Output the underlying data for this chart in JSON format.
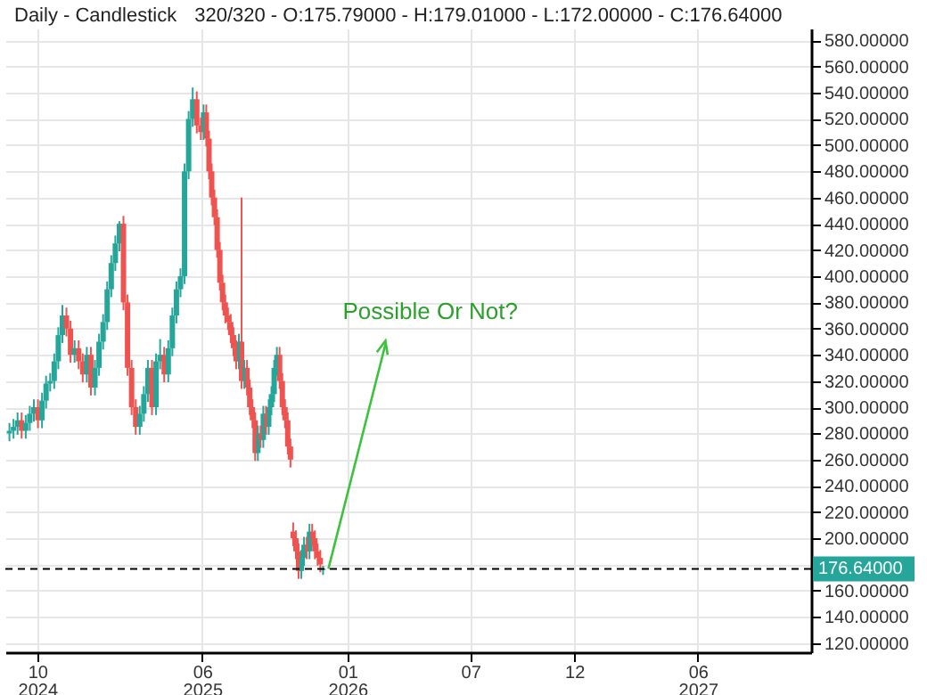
{
  "chart_data": {
    "type": "candlestick",
    "title": "Daily - Candlestick",
    "subtitle": "320/320 - O:175.79000 - H:179.01000 - L:172.00000 - C:176.64000",
    "x": [
      "2024-08-21",
      "2024-08-27",
      "2024-09-02",
      "2024-09-08",
      "2024-09-14",
      "2024-09-20",
      "2024-09-26",
      "2024-10-02",
      "2024-10-08",
      "2024-10-14",
      "2024-10-20",
      "2024-10-26",
      "2024-11-01",
      "2024-11-07",
      "2024-11-13",
      "2024-11-19",
      "2024-11-25",
      "2024-12-01",
      "2024-12-07",
      "2024-12-13",
      "2024-12-19",
      "2024-12-25",
      "2024-12-31",
      "2025-01-06",
      "2025-01-12",
      "2025-01-18",
      "2025-01-24",
      "2025-01-30",
      "2025-02-05",
      "2025-02-11",
      "2025-02-17",
      "2025-02-23",
      "2025-03-01",
      "2025-03-07",
      "2025-03-13",
      "2025-03-19",
      "2025-03-25",
      "2025-03-31",
      "2025-04-06",
      "2025-04-12",
      "2025-04-18",
      "2025-04-24",
      "2025-04-30",
      "2025-05-06",
      "2025-05-12",
      "2025-05-18",
      "2025-05-24",
      "2025-05-30",
      "2025-06-03",
      "2025-06-07",
      "2025-06-11",
      "2025-06-15",
      "2025-06-19",
      "2025-06-23",
      "2025-06-27",
      "2025-07-01",
      "2025-07-05",
      "2025-07-09",
      "2025-07-13",
      "2025-07-17",
      "2025-07-21",
      "2025-07-25",
      "2025-07-29",
      "2025-08-02",
      "2025-08-06",
      "2025-08-10",
      "2025-08-14",
      "2025-08-18",
      "2025-08-22",
      "2025-08-26",
      "2025-08-30",
      "2025-09-03",
      "2025-09-07",
      "2025-09-11",
      "2025-09-15",
      "2025-09-19",
      "2025-09-23",
      "2025-09-27",
      "2025-10-01",
      "2025-10-05",
      "2025-10-09",
      "2025-10-13",
      "2025-10-17",
      "2025-10-21",
      "2025-10-25",
      "2025-10-29",
      "2025-11-02",
      "2025-11-06",
      "2025-11-10",
      "2025-11-14",
      "2025-11-18",
      "2025-11-22",
      "2025-11-26"
    ],
    "ohlc": [
      [
        280,
        288,
        274,
        282
      ],
      [
        282,
        291,
        276,
        285
      ],
      [
        285,
        296,
        279,
        290
      ],
      [
        290,
        296,
        276,
        282
      ],
      [
        282,
        294,
        276,
        288
      ],
      [
        288,
        301,
        282,
        295
      ],
      [
        295,
        306,
        289,
        300
      ],
      [
        300,
        306,
        284,
        290
      ],
      [
        290,
        311,
        284,
        305
      ],
      [
        305,
        324,
        299,
        318
      ],
      [
        318,
        326,
        312,
        320
      ],
      [
        320,
        341,
        314,
        335
      ],
      [
        335,
        361,
        329,
        355
      ],
      [
        355,
        378,
        349,
        370
      ],
      [
        370,
        376,
        354,
        360
      ],
      [
        360,
        366,
        334,
        340
      ],
      [
        340,
        351,
        334,
        345
      ],
      [
        345,
        351,
        329,
        335
      ],
      [
        335,
        341,
        319,
        325
      ],
      [
        325,
        346,
        319,
        340
      ],
      [
        340,
        346,
        309,
        315
      ],
      [
        315,
        336,
        309,
        330
      ],
      [
        330,
        356,
        324,
        350
      ],
      [
        350,
        371,
        344,
        365
      ],
      [
        365,
        396,
        359,
        390
      ],
      [
        390,
        416,
        384,
        410
      ],
      [
        410,
        431,
        404,
        425
      ],
      [
        425,
        442,
        419,
        440
      ],
      [
        440,
        446,
        374,
        380
      ],
      [
        380,
        386,
        324,
        330
      ],
      [
        330,
        336,
        294,
        300
      ],
      [
        300,
        306,
        279,
        285
      ],
      [
        285,
        301,
        279,
        295
      ],
      [
        295,
        316,
        289,
        310
      ],
      [
        310,
        336,
        304,
        330
      ],
      [
        330,
        336,
        294,
        300
      ],
      [
        300,
        341,
        294,
        335
      ],
      [
        335,
        352,
        329,
        340
      ],
      [
        340,
        346,
        319,
        325
      ],
      [
        325,
        351,
        319,
        345
      ],
      [
        345,
        376,
        339,
        370
      ],
      [
        370,
        396,
        364,
        390
      ],
      [
        390,
        406,
        384,
        400
      ],
      [
        400,
        486,
        394,
        480
      ],
      [
        480,
        526,
        474,
        520
      ],
      [
        520,
        544,
        514,
        535
      ],
      [
        535,
        541,
        509,
        515
      ],
      [
        515,
        521,
        504,
        510
      ],
      [
        510,
        531,
        504,
        525
      ],
      [
        525,
        531,
        499,
        505
      ],
      [
        505,
        511,
        474,
        480
      ],
      [
        480,
        486,
        454,
        460
      ],
      [
        460,
        466,
        439,
        445
      ],
      [
        445,
        451,
        414,
        420
      ],
      [
        420,
        426,
        389,
        395
      ],
      [
        395,
        401,
        374,
        380
      ],
      [
        380,
        386,
        364,
        370
      ],
      [
        370,
        376,
        359,
        365
      ],
      [
        365,
        371,
        349,
        355
      ],
      [
        355,
        361,
        339,
        345
      ],
      [
        345,
        351,
        329,
        335
      ],
      [
        335,
        356,
        329,
        350
      ],
      [
        350,
        460,
        314,
        320
      ],
      [
        320,
        336,
        314,
        330
      ],
      [
        330,
        336,
        309,
        315
      ],
      [
        315,
        321,
        294,
        300
      ],
      [
        300,
        306,
        284,
        290
      ],
      [
        290,
        296,
        259,
        265
      ],
      [
        265,
        286,
        259,
        280
      ],
      [
        280,
        286,
        269,
        275
      ],
      [
        275,
        301,
        269,
        295
      ],
      [
        295,
        301,
        279,
        285
      ],
      [
        285,
        306,
        279,
        300
      ],
      [
        300,
        316,
        294,
        310
      ],
      [
        310,
        336,
        304,
        330
      ],
      [
        330,
        346,
        324,
        340
      ],
      [
        340,
        346,
        314,
        320
      ],
      [
        320,
        326,
        294,
        300
      ],
      [
        300,
        306,
        284,
        290
      ],
      [
        290,
        296,
        264,
        270
      ],
      [
        270,
        276,
        254,
        260
      ],
      [
        205,
        212,
        194,
        200
      ],
      [
        200,
        206,
        184,
        190
      ],
      [
        190,
        196,
        169,
        175
      ],
      [
        175,
        191,
        169,
        185
      ],
      [
        185,
        201,
        179,
        195
      ],
      [
        195,
        201,
        184,
        190
      ],
      [
        190,
        211,
        184,
        205
      ],
      [
        205,
        211,
        194,
        200
      ],
      [
        200,
        206,
        184,
        190
      ],
      [
        190,
        196,
        179,
        185
      ],
      [
        185,
        191,
        174,
        180
      ],
      [
        175.79,
        179.01,
        172,
        176.64
      ]
    ],
    "colors": [
      "#26a69a",
      "#26a69a",
      "#26a69a",
      "#ef5350",
      "#26a69a",
      "#26a69a",
      "#26a69a",
      "#ef5350",
      "#26a69a",
      "#26a69a",
      "#26a69a",
      "#26a69a",
      "#26a69a",
      "#26a69a",
      "#ef5350",
      "#ef5350",
      "#26a69a",
      "#ef5350",
      "#ef5350",
      "#26a69a",
      "#ef5350",
      "#26a69a",
      "#26a69a",
      "#26a69a",
      "#26a69a",
      "#26a69a",
      "#26a69a",
      "#26a69a",
      "#ef5350",
      "#ef5350",
      "#ef5350",
      "#ef5350",
      "#26a69a",
      "#26a69a",
      "#26a69a",
      "#ef5350",
      "#26a69a",
      "#26a69a",
      "#ef5350",
      "#26a69a",
      "#26a69a",
      "#26a69a",
      "#26a69a",
      "#26a69a",
      "#26a69a",
      "#26a69a",
      "#ef5350",
      "#ef5350",
      "#26a69a",
      "#ef5350",
      "#ef5350",
      "#ef5350",
      "#ef5350",
      "#ef5350",
      "#ef5350",
      "#ef5350",
      "#ef5350",
      "#ef5350",
      "#ef5350",
      "#ef5350",
      "#ef5350",
      "#26a69a",
      "#ef5350",
      "#26a69a",
      "#ef5350",
      "#ef5350",
      "#ef5350",
      "#ef5350",
      "#26a69a",
      "#ef5350",
      "#26a69a",
      "#ef5350",
      "#26a69a",
      "#26a69a",
      "#26a69a",
      "#26a69a",
      "#ef5350",
      "#ef5350",
      "#ef5350",
      "#ef5350",
      "#ef5350",
      "#ef5350",
      "#ef5350",
      "#ef5350",
      "#26a69a",
      "#26a69a",
      "#ef5350",
      "#26a69a",
      "#ef5350",
      "#ef5350",
      "#ef5350",
      "#ef5350",
      "#26a69a"
    ],
    "xlim": [
      "2024-08-15",
      "2027-11-15"
    ],
    "xticks": [
      {
        "value": "2024-10-01",
        "label": "10\n2024"
      },
      {
        "value": "2025-06-01",
        "label": "06\n2025"
      },
      {
        "value": "2026-01-01",
        "label": "01\n2026"
      },
      {
        "value": "2026-07-01",
        "label": "07"
      },
      {
        "value": "2026-12-01",
        "label": "12"
      },
      {
        "value": "2027-06-01",
        "label": "06\n2027"
      }
    ],
    "ylim": [
      113,
      589
    ],
    "yticks": [
      {
        "value": 120,
        "label": "120.00000"
      },
      {
        "value": 140,
        "label": "140.00000"
      },
      {
        "value": 160,
        "label": "160.00000"
      },
      {
        "value": 180,
        "label": null
      },
      {
        "value": 200,
        "label": "200.00000"
      },
      {
        "value": 220,
        "label": "220.00000"
      },
      {
        "value": 240,
        "label": "240.00000"
      },
      {
        "value": 260,
        "label": "260.00000"
      },
      {
        "value": 280,
        "label": "280.00000"
      },
      {
        "value": 300,
        "label": "300.00000"
      },
      {
        "value": 320,
        "label": "320.00000"
      },
      {
        "value": 340,
        "label": "340.00000"
      },
      {
        "value": 360,
        "label": "360.00000"
      },
      {
        "value": 380,
        "label": "380.00000"
      },
      {
        "value": 400,
        "label": "400.00000"
      },
      {
        "value": 420,
        "label": "420.00000"
      },
      {
        "value": 440,
        "label": "440.00000"
      },
      {
        "value": 460,
        "label": "460.00000"
      },
      {
        "value": 480,
        "label": "480.00000"
      },
      {
        "value": 500,
        "label": "500.00000"
      },
      {
        "value": 520,
        "label": "520.00000"
      },
      {
        "value": 540,
        "label": "540.00000"
      },
      {
        "value": 560,
        "label": "560.00000"
      },
      {
        "value": 580,
        "label": "580.00000"
      }
    ],
    "grid": true,
    "ref_lines": [
      {
        "axis": "y",
        "value": 176.64,
        "label": "176.64000",
        "color": "#000000",
        "line_style": "dashed"
      }
    ],
    "annotations": [
      {
        "text": "Possible Or Not?",
        "x": "2025-11-26",
        "y": 176.64
      }
    ]
  }
}
